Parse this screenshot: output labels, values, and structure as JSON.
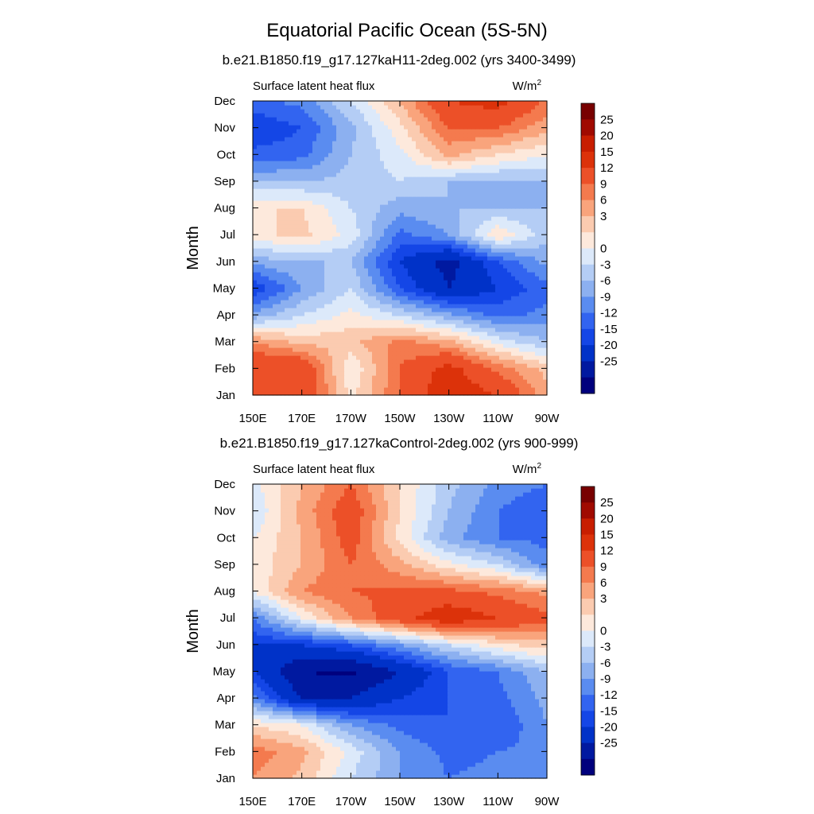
{
  "figure": {
    "title": "Equatorial Pacific Ocean (5S-5N)"
  },
  "colors": {
    "palette": [
      "#00007d",
      "#0019a0",
      "#0032c8",
      "#1446e6",
      "#3264f0",
      "#5a8cf0",
      "#8cb0f0",
      "#b4cdf5",
      "#dce9fa",
      "#fde9dc",
      "#fbcbb0",
      "#f9a47c",
      "#f47a4e",
      "#ec5028",
      "#dc320a",
      "#c81e00",
      "#a00a00",
      "#780000"
    ]
  },
  "chart_data": [
    {
      "type": "heatmap",
      "subtitle": "b.e21.B1850.f19_g17.127kaH11-2deg.002 (yrs 3400-3499)",
      "variable": "Surface latent heat flux",
      "units": "W/m",
      "units_sup": "2",
      "ylabel": "Month",
      "xticks": [
        "150E",
        "170E",
        "170W",
        "150W",
        "130W",
        "110W",
        "90W"
      ],
      "yticks": [
        "Jan",
        "Feb",
        "Mar",
        "Apr",
        "May",
        "Jun",
        "Jul",
        "Aug",
        "Sep",
        "Oct",
        "Nov",
        "Dec"
      ],
      "xlim": [
        150,
        270
      ],
      "levels": [
        -25,
        -20,
        -15,
        -12,
        -9,
        -6,
        -3,
        0,
        3,
        6,
        9,
        12,
        15,
        20,
        25
      ],
      "colorbar_labels": [
        "25",
        "20",
        "15",
        "12",
        "9",
        "6",
        "3",
        "0",
        "-3",
        "-6",
        "-9",
        "-12",
        "-15",
        "-20",
        "-25"
      ],
      "grid_x": [
        150,
        170,
        190,
        210,
        230,
        250,
        270
      ],
      "z": [
        [
          18,
          20,
          5,
          15,
          24,
          20,
          10
        ],
        [
          20,
          20,
          3,
          15,
          22,
          14,
          8
        ],
        [
          12,
          8,
          8,
          13,
          10,
          2,
          -3
        ],
        [
          -5,
          0,
          4,
          0,
          -5,
          -10,
          -8
        ],
        [
          -15,
          -6,
          0,
          -12,
          -20,
          -15,
          -10
        ],
        [
          -5,
          -3,
          -3,
          -15,
          -22,
          -12,
          -5
        ],
        [
          5,
          7,
          2,
          -10,
          -6,
          6,
          -2
        ],
        [
          6,
          6,
          0,
          -5,
          -3,
          -3,
          -3
        ],
        [
          -3,
          -3,
          -2,
          0,
          -3,
          -4,
          -3
        ],
        [
          -11,
          -10,
          -3,
          2,
          10,
          6,
          3
        ],
        [
          -15,
          -12,
          -4,
          5,
          15,
          15,
          10
        ],
        [
          -10,
          -8,
          0,
          9,
          20,
          22,
          14
        ]
      ]
    },
    {
      "type": "heatmap",
      "subtitle": "b.e21.B1850.f19_g17.127kaControl-2deg.002 (yrs 900-999)",
      "variable": "Surface latent heat flux",
      "units": "W/m",
      "units_sup": "2",
      "ylabel": "Month",
      "xticks": [
        "150E",
        "170E",
        "170W",
        "150W",
        "130W",
        "110W",
        "90W"
      ],
      "yticks": [
        "Jan",
        "Feb",
        "Mar",
        "Apr",
        "May",
        "Jun",
        "Jul",
        "Aug",
        "Sep",
        "Oct",
        "Nov",
        "Dec"
      ],
      "xlim": [
        150,
        270
      ],
      "levels": [
        -25,
        -20,
        -15,
        -12,
        -9,
        -6,
        -3,
        0,
        3,
        6,
        9,
        12,
        15,
        20,
        25
      ],
      "colorbar_labels": [
        "25",
        "20",
        "15",
        "12",
        "9",
        "6",
        "3",
        "0",
        "-3",
        "-6",
        "-9",
        "-12",
        "-15",
        "-20",
        "-25"
      ],
      "grid_x": [
        150,
        170,
        190,
        210,
        230,
        250,
        270
      ],
      "z": [
        [
          12,
          8,
          0,
          -6,
          -9,
          -8,
          -9
        ],
        [
          14,
          10,
          2,
          -6,
          -10,
          -9,
          -8
        ],
        [
          6,
          3,
          -6,
          -10,
          -12,
          -12,
          -6
        ],
        [
          -8,
          -20,
          -20,
          -15,
          -12,
          -10,
          -5
        ],
        [
          -15,
          -25,
          -26,
          -20,
          -12,
          -9,
          -3
        ],
        [
          -15,
          -15,
          -12,
          -6,
          0,
          5,
          8
        ],
        [
          -9,
          3,
          12,
          18,
          24,
          20,
          16
        ],
        [
          3,
          12,
          15,
          16,
          16,
          14,
          11
        ],
        [
          4,
          9,
          15,
          10,
          4,
          0,
          -8
        ],
        [
          3,
          9,
          17,
          5,
          -5,
          -9,
          -10
        ],
        [
          0,
          10,
          18,
          6,
          -3,
          -9,
          -12
        ],
        [
          2,
          9,
          15,
          6,
          -2,
          -7,
          -9
        ]
      ]
    }
  ]
}
